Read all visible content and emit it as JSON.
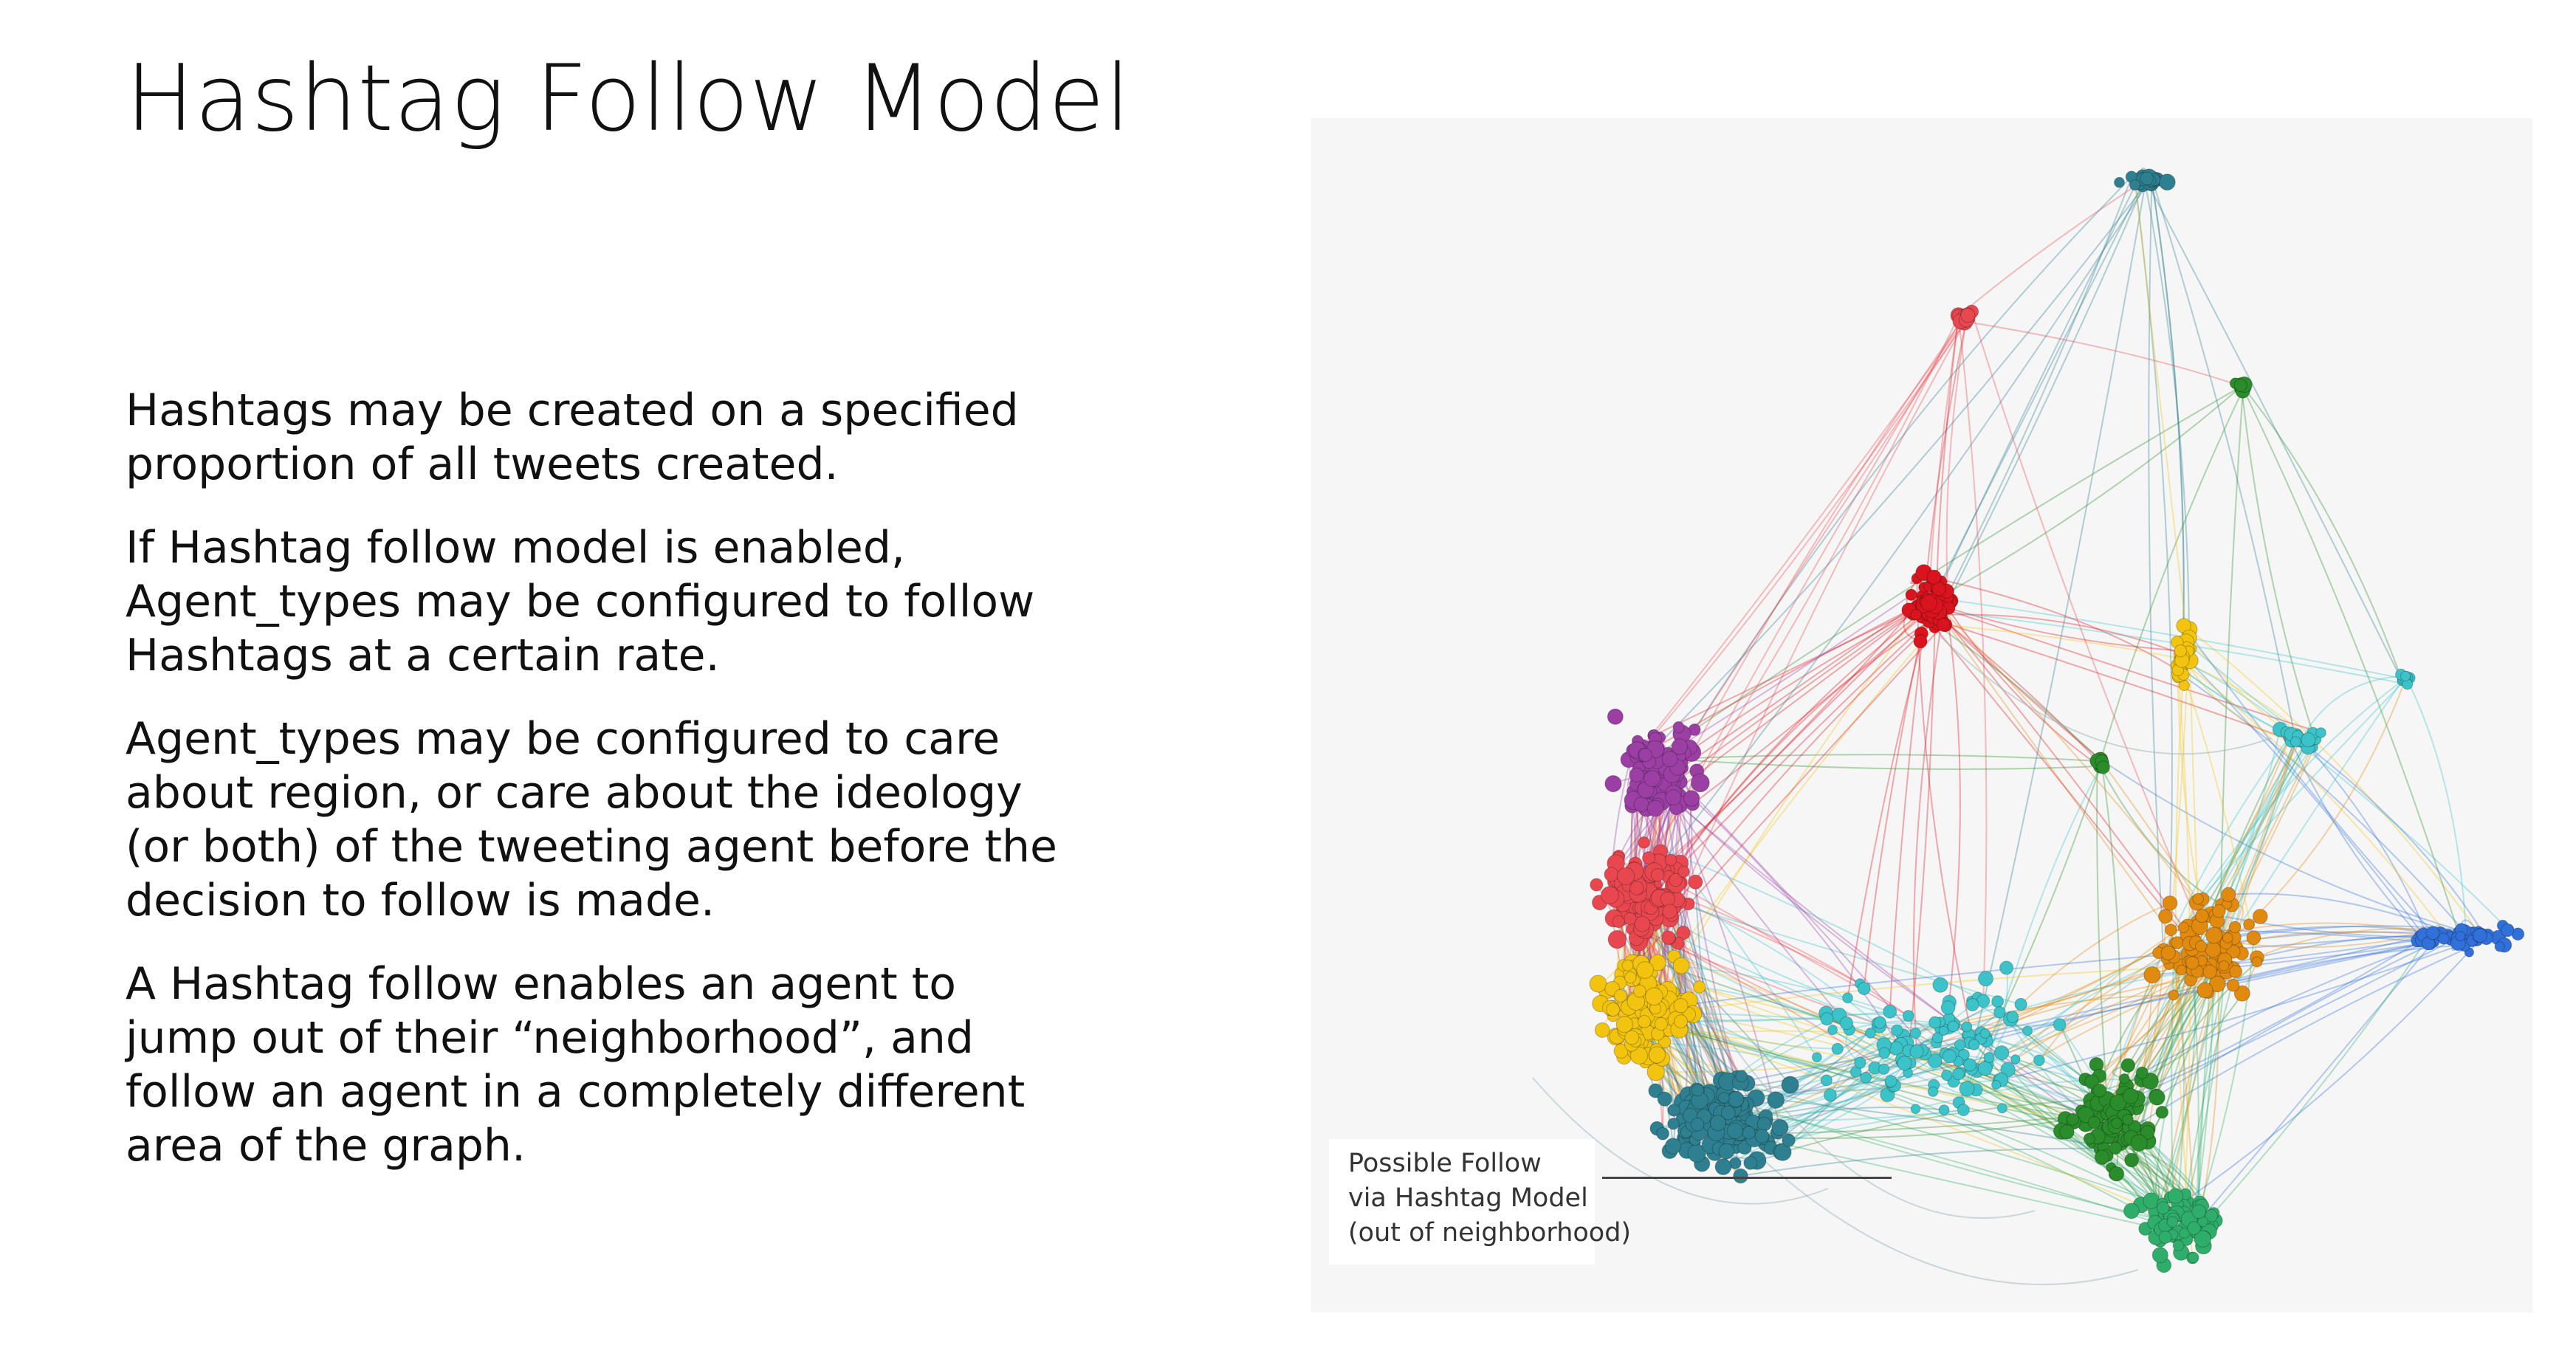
{
  "slide": {
    "title": "Hashtag Follow Model",
    "paragraphs": [
      "Hashtags may be created on a specified proportion of all tweets created.",
      "If Hashtag follow model is enabled, Agent_types may be configured to follow Hashtags at a certain rate.",
      "Agent_types may be configured to care about region, or care about the ideology (or both) of the tweeting agent before the decision to follow is made.",
      "A Hashtag follow enables an agent to jump out of their “neighborhood”, and follow an agent in a completely different area of the graph."
    ]
  },
  "figure": {
    "caption_lines": [
      "Possible Follow",
      "via Hashtag Model",
      "(out of neighborhood)"
    ],
    "cluster_colors": [
      "#9b3fa4",
      "#e8474f",
      "#f2c40f",
      "#2e7f8f",
      "#3cc3c9",
      "#e08a10",
      "#2a8c2a",
      "#2fae6b",
      "#3070d8",
      "#d9141f"
    ],
    "icons": [
      "network-graph-icon"
    ]
  }
}
